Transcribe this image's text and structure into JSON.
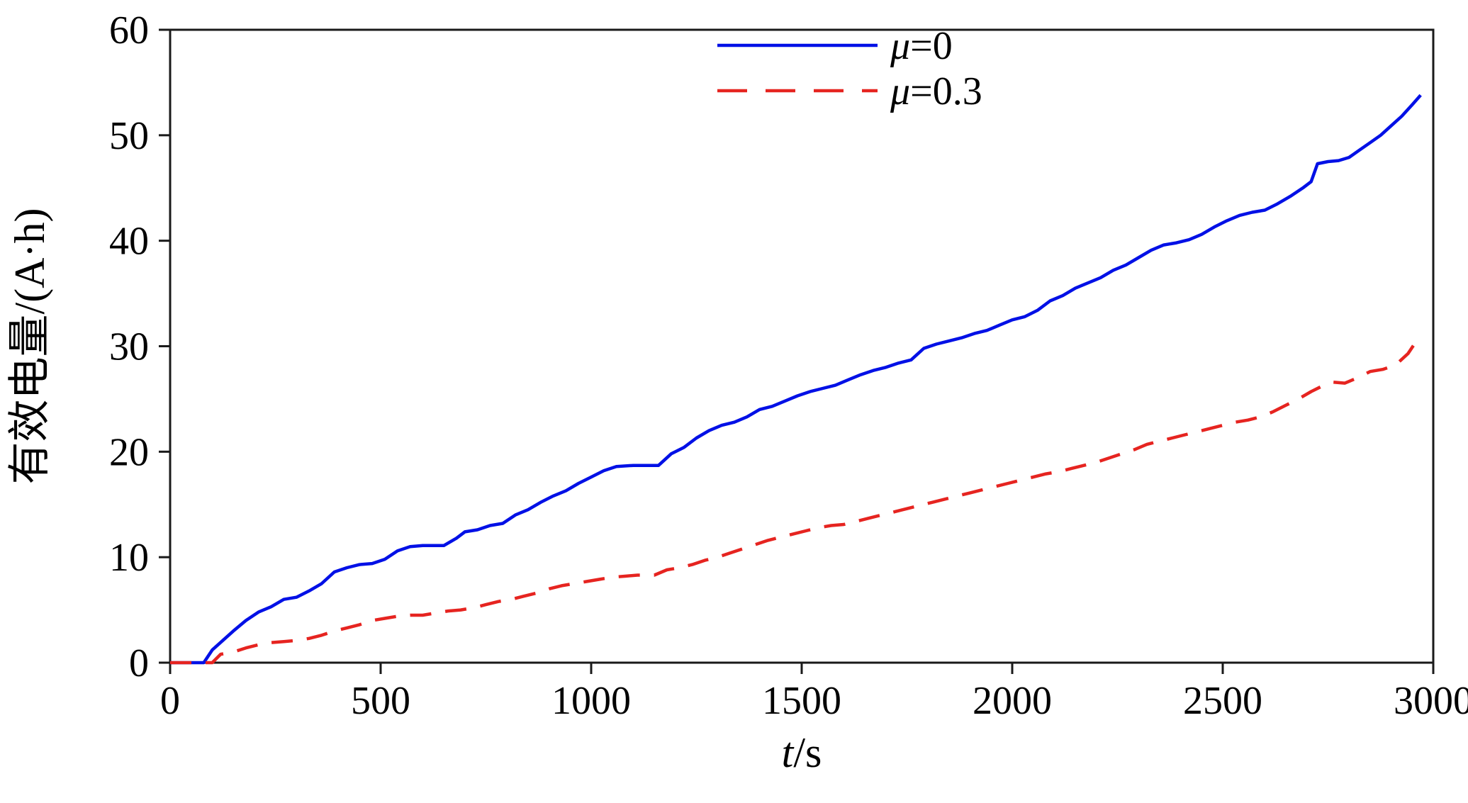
{
  "figure": {
    "background": "#ffffff",
    "axis_color": "#1a1a1a"
  },
  "chart_data": {
    "type": "line",
    "title": "",
    "xlabel_variable": "t",
    "xlabel_unit": "/s",
    "ylabel": "有效电量/(A·h)",
    "xlim": [
      0,
      3000
    ],
    "ylim": [
      0,
      60
    ],
    "xticks": [
      0,
      500,
      1000,
      1500,
      2000,
      2500,
      3000
    ],
    "yticks": [
      0,
      10,
      20,
      30,
      40,
      50,
      60
    ],
    "grid": false,
    "legend_position": "top-right",
    "series": [
      {
        "name": "μ=0",
        "color": "#0010e6",
        "style": "solid",
        "x": [
          0,
          80,
          100,
          150,
          180,
          210,
          240,
          270,
          300,
          330,
          360,
          390,
          420,
          450,
          480,
          510,
          540,
          570,
          600,
          650,
          680,
          700,
          730,
          760,
          790,
          820,
          850,
          880,
          910,
          940,
          970,
          1000,
          1030,
          1060,
          1100,
          1160,
          1190,
          1220,
          1250,
          1280,
          1310,
          1340,
          1370,
          1400,
          1430,
          1460,
          1490,
          1520,
          1550,
          1580,
          1610,
          1640,
          1670,
          1700,
          1730,
          1760,
          1790,
          1820,
          1850,
          1880,
          1910,
          1940,
          1970,
          2000,
          2030,
          2060,
          2090,
          2120,
          2150,
          2180,
          2210,
          2240,
          2270,
          2300,
          2330,
          2360,
          2390,
          2420,
          2450,
          2480,
          2510,
          2540,
          2570,
          2600,
          2630,
          2660,
          2690,
          2710,
          2725,
          2750,
          2775,
          2800,
          2825,
          2850,
          2875,
          2900,
          2925,
          2950,
          2970
        ],
        "y": [
          0,
          0,
          1.2,
          3,
          4,
          4.8,
          5.3,
          6,
          6.2,
          6.8,
          7.5,
          8.6,
          9,
          9.3,
          9.4,
          9.8,
          10.6,
          11,
          11.1,
          11.1,
          11.8,
          12.4,
          12.6,
          13,
          13.2,
          14,
          14.5,
          15.2,
          15.8,
          16.3,
          17,
          17.6,
          18.2,
          18.6,
          18.7,
          18.7,
          19.8,
          20.4,
          21.3,
          22,
          22.5,
          22.8,
          23.3,
          24,
          24.3,
          24.8,
          25.3,
          25.7,
          26,
          26.3,
          26.8,
          27.3,
          27.7,
          28,
          28.4,
          28.7,
          29.8,
          30.2,
          30.5,
          30.8,
          31.2,
          31.5,
          32,
          32.5,
          32.8,
          33.4,
          34.3,
          34.8,
          35.5,
          36,
          36.5,
          37.2,
          37.7,
          38.4,
          39.1,
          39.6,
          39.8,
          40.1,
          40.6,
          41.3,
          41.9,
          42.4,
          42.7,
          42.9,
          43.5,
          44.2,
          45,
          45.6,
          47.3,
          47.5,
          47.6,
          47.9,
          48.6,
          49.3,
          50,
          50.9,
          51.8,
          52.9,
          53.8
        ]
      },
      {
        "name": "μ=0.3",
        "color": "#e62420",
        "style": "dashed",
        "x": [
          0,
          100,
          120,
          150,
          180,
          210,
          240,
          270,
          300,
          330,
          360,
          390,
          420,
          450,
          480,
          510,
          540,
          570,
          600,
          630,
          660,
          690,
          720,
          750,
          780,
          810,
          840,
          870,
          900,
          930,
          960,
          990,
          1020,
          1050,
          1080,
          1110,
          1150,
          1180,
          1210,
          1240,
          1270,
          1300,
          1330,
          1360,
          1390,
          1420,
          1450,
          1480,
          1510,
          1540,
          1570,
          1600,
          1630,
          1660,
          1690,
          1720,
          1750,
          1780,
          1810,
          1840,
          1870,
          1900,
          1930,
          1960,
          1990,
          2020,
          2050,
          2080,
          2110,
          2140,
          2170,
          2200,
          2230,
          2260,
          2290,
          2320,
          2350,
          2380,
          2410,
          2440,
          2470,
          2500,
          2530,
          2560,
          2590,
          2620,
          2650,
          2680,
          2710,
          2740,
          2760,
          2790,
          2820,
          2850,
          2880,
          2910,
          2940,
          2960
        ],
        "y": [
          0,
          0,
          0.8,
          1,
          1.4,
          1.7,
          1.9,
          2,
          2.1,
          2.3,
          2.6,
          3,
          3.3,
          3.6,
          4,
          4.2,
          4.4,
          4.5,
          4.5,
          4.7,
          4.9,
          5,
          5.2,
          5.5,
          5.8,
          6,
          6.3,
          6.6,
          7,
          7.3,
          7.5,
          7.7,
          7.9,
          8.1,
          8.2,
          8.3,
          8.3,
          8.8,
          9,
          9.3,
          9.7,
          10,
          10.4,
          10.8,
          11.2,
          11.6,
          11.9,
          12.2,
          12.5,
          12.8,
          13,
          13.1,
          13.4,
          13.7,
          14,
          14.3,
          14.6,
          14.9,
          15.2,
          15.5,
          15.8,
          16.1,
          16.4,
          16.7,
          17,
          17.3,
          17.6,
          17.9,
          18.1,
          18.4,
          18.7,
          19,
          19.4,
          19.8,
          20.2,
          20.7,
          21,
          21.3,
          21.6,
          21.9,
          22.2,
          22.5,
          22.8,
          23,
          23.3,
          23.8,
          24.4,
          25,
          25.7,
          26.3,
          26.6,
          26.5,
          27,
          27.6,
          27.8,
          28.2,
          29.3,
          30.5
        ]
      }
    ]
  }
}
